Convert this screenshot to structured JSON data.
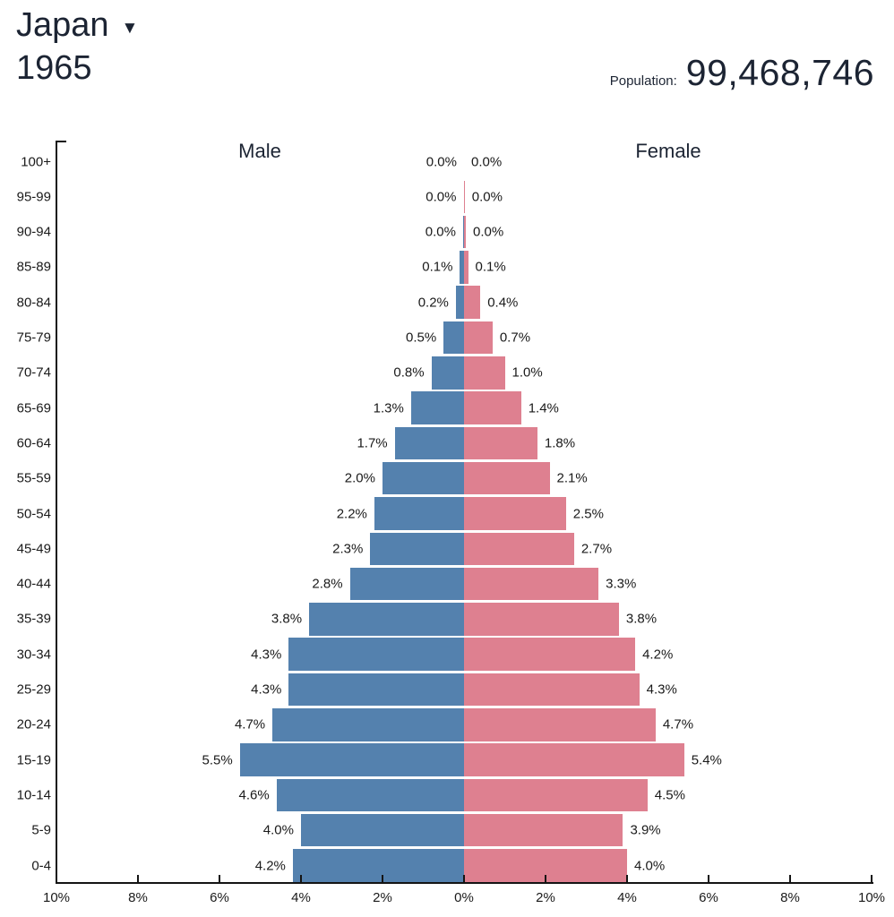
{
  "header": {
    "country": "Japan",
    "year": "1965",
    "population_label": "Population:",
    "population_value": "99,468,746"
  },
  "chart_data": {
    "type": "bar",
    "variant": "population-pyramid",
    "title": "Japan 1965 population pyramid",
    "male_label": "Male",
    "female_label": "Female",
    "categories": [
      "100+",
      "95-99",
      "90-94",
      "85-89",
      "80-84",
      "75-79",
      "70-74",
      "65-69",
      "60-64",
      "55-59",
      "50-54",
      "45-49",
      "40-44",
      "35-39",
      "30-34",
      "25-29",
      "20-24",
      "15-19",
      "10-14",
      "5-9",
      "0-4"
    ],
    "series": [
      {
        "name": "Male",
        "side": "left",
        "color": "#5481ae",
        "values": [
          0.0,
          0.0,
          0.0,
          0.1,
          0.2,
          0.5,
          0.8,
          1.3,
          1.7,
          2.0,
          2.2,
          2.3,
          2.8,
          3.8,
          4.3,
          4.3,
          4.7,
          5.5,
          4.6,
          4.0,
          4.2
        ]
      },
      {
        "name": "Female",
        "side": "right",
        "color": "#de8090",
        "values": [
          0.0,
          0.0,
          0.0,
          0.1,
          0.4,
          0.7,
          1.0,
          1.4,
          1.8,
          2.1,
          2.5,
          2.7,
          3.3,
          3.8,
          4.2,
          4.3,
          4.7,
          5.4,
          4.5,
          3.9,
          4.0
        ]
      }
    ],
    "value_suffix": "%",
    "x_ticks": [
      "10%",
      "8%",
      "6%",
      "4%",
      "2%",
      "0%",
      "2%",
      "4%",
      "6%",
      "8%",
      "10%"
    ],
    "xlim": [
      -10,
      10
    ],
    "grid": false,
    "legend_position": "top-inline"
  },
  "colors": {
    "male": "#5481ae",
    "female": "#de8090",
    "heading_text": "#1c2433",
    "chart_text": "#1a1a1a",
    "axis": "#141414"
  }
}
